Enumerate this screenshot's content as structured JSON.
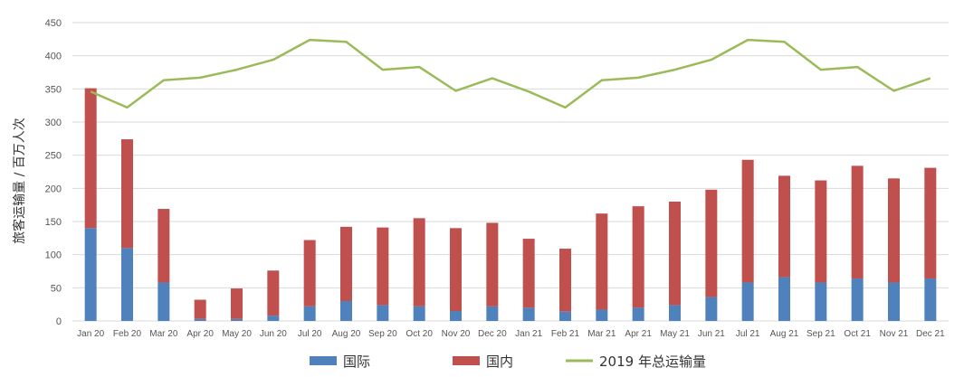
{
  "chart_data": {
    "type": "bar",
    "stacked": true,
    "title": "",
    "xlabel": "",
    "ylabel": "旅客运输量 / 百万人次",
    "ylim": [
      0,
      450
    ],
    "yticks": [
      0,
      50,
      100,
      150,
      200,
      250,
      300,
      350,
      400,
      450
    ],
    "grid": true,
    "legend_position": "bottom",
    "categories": [
      "Jan 20",
      "Feb 20",
      "Mar 20",
      "Apr 20",
      "May 20",
      "Jun 20",
      "Jul 20",
      "Aug 20",
      "Sep 20",
      "Oct 20",
      "Nov 20",
      "Dec 20",
      "Jan 21",
      "Feb 21",
      "Mar 21",
      "Apr 21",
      "May 21",
      "Jun 21",
      "Jul 21",
      "Aug 21",
      "Sep 21",
      "Oct 21",
      "Nov 21",
      "Dec 21"
    ],
    "series": [
      {
        "name": "国际",
        "kind": "bar",
        "color": "#4f81bd",
        "values": [
          140,
          110,
          58,
          3,
          3,
          8,
          22,
          30,
          24,
          22,
          15,
          22,
          20,
          14,
          17,
          20,
          24,
          36,
          58,
          66,
          58,
          64,
          58,
          64
        ]
      },
      {
        "name": "国内",
        "kind": "bar",
        "color": "#c0504d",
        "values": [
          211,
          164,
          111,
          29,
          46,
          68,
          100,
          112,
          117,
          133,
          125,
          126,
          104,
          95,
          145,
          153,
          156,
          162,
          185,
          153,
          154,
          170,
          157,
          167
        ]
      },
      {
        "name": "2019 年总运输量",
        "kind": "line",
        "color": "#9bbb59",
        "values": [
          346,
          322,
          363,
          367,
          379,
          394,
          424,
          421,
          379,
          383,
          347,
          366,
          346,
          322,
          363,
          367,
          379,
          394,
          424,
          421,
          379,
          383,
          347,
          366
        ]
      }
    ]
  }
}
